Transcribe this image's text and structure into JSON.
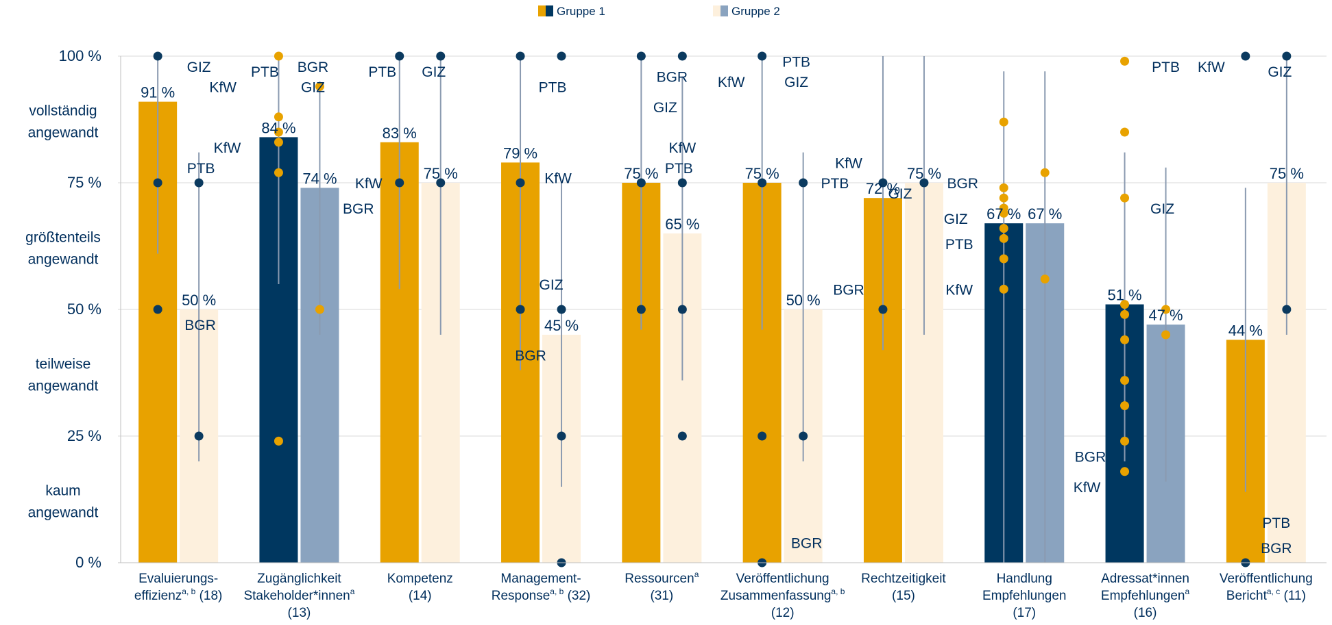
{
  "colors": {
    "group1_orange": "#e8a200",
    "group1_navy": "#003760",
    "group2_light": "#fdf0dd",
    "group2_blue": "#8aa3bf",
    "text": "#002e5c",
    "whisker": "#8a9ab0",
    "grid": "#d9d9d9",
    "dot_navy": "#0b3a5f",
    "dot_orange": "#e8a200"
  },
  "legend": {
    "group1_label": "Gruppe 1",
    "group2_label": "Gruppe 2"
  },
  "chart_data": {
    "type": "bar",
    "ylim": [
      0,
      100
    ],
    "y_ticks": [
      {
        "v": 0,
        "label": "0 %"
      },
      {
        "v": 25,
        "label": "25 %"
      },
      {
        "v": 50,
        "label": "50 %"
      },
      {
        "v": 75,
        "label": "75 %"
      },
      {
        "v": 100,
        "label": "100 %"
      }
    ],
    "y_bands": [
      {
        "v": 87.5,
        "lines": [
          "vollständig",
          "angewandt"
        ]
      },
      {
        "v": 62.5,
        "lines": [
          "größtenteils",
          "angewandt"
        ]
      },
      {
        "v": 37.5,
        "lines": [
          "teilweise",
          "angewandt"
        ]
      },
      {
        "v": 12.5,
        "lines": [
          "kaum",
          "angewandt"
        ]
      }
    ],
    "series": [
      {
        "name": "Gruppe 1"
      },
      {
        "name": "Gruppe 2"
      }
    ],
    "categories": [
      {
        "lines": [
          [
            "Evaluierungs-"
          ],
          [
            "effizienz",
            "a, b",
            " (18)"
          ]
        ],
        "g1": 91,
        "g1_label": "91 %",
        "g1_style": "orange",
        "g2": 50,
        "g2_label": "50 %",
        "g2_style": "light",
        "g1_whisker": [
          61,
          100
        ],
        "g2_whisker": [
          20,
          81
        ],
        "g1_dots": [
          {
            "v": 100,
            "c": "navy"
          },
          {
            "v": 75,
            "c": "navy"
          },
          {
            "v": 50,
            "c": "navy"
          }
        ],
        "g2_dots": [
          {
            "v": 75,
            "c": "navy"
          },
          {
            "v": 25,
            "c": "navy"
          }
        ],
        "labels": [
          {
            "text": "GIZ",
            "v": 98,
            "dx": 60
          },
          {
            "text": "KfW",
            "v": 94,
            "dx": 95
          },
          {
            "text": "PTB",
            "v": 78,
            "dx": 63
          },
          {
            "text": "BGR",
            "v": 47,
            "dx": 62
          }
        ]
      },
      {
        "lines": [
          [
            "Zugänglichkeit"
          ],
          [
            "Stakeholder*innen",
            "a",
            ""
          ],
          [
            "(13)"
          ]
        ],
        "g1": 84,
        "g1_label": "84 %",
        "g1_style": "navy",
        "g2": 74,
        "g2_label": "74 %",
        "g2_style": "blue",
        "g1_whisker": [
          55,
          100
        ],
        "g2_whisker": [
          45,
          95
        ],
        "g1_dots": [
          {
            "v": 100,
            "c": "orange"
          },
          {
            "v": 88,
            "c": "orange"
          },
          {
            "v": 85,
            "c": "orange"
          },
          {
            "v": 83,
            "c": "orange"
          },
          {
            "v": 77,
            "c": "orange"
          },
          {
            "v": 24,
            "c": "orange"
          }
        ],
        "g2_dots": [
          {
            "v": 94,
            "c": "orange"
          },
          {
            "v": 50,
            "c": "orange"
          }
        ],
        "labels": [
          {
            "text": "BGR",
            "v": 98,
            "dx": 50
          },
          {
            "text": "PTB",
            "v": 97,
            "dx": -20
          },
          {
            "text": "GIZ",
            "v": 94,
            "dx": 50
          },
          {
            "text": "KfW",
            "v": 82,
            "dx": -75
          }
        ]
      },
      {
        "lines": [
          [
            "Kompetenz"
          ],
          [
            "(14)"
          ]
        ],
        "g1": 83,
        "g1_label": "83 %",
        "g1_style": "orange",
        "g2": 75,
        "g2_label": "75 %",
        "g2_style": "light",
        "g1_whisker": [
          54,
          100
        ],
        "g2_whisker": [
          45,
          100
        ],
        "g1_dots": [
          {
            "v": 100,
            "c": "navy"
          },
          {
            "v": 75,
            "c": "navy"
          }
        ],
        "g2_dots": [
          {
            "v": 100,
            "c": "navy"
          },
          {
            "v": 75,
            "c": "navy"
          }
        ],
        "labels": [
          {
            "text": "PTB",
            "v": 97,
            "dx": -25
          },
          {
            "text": "GIZ",
            "v": 97,
            "dx": 50
          },
          {
            "text": "KfW",
            "v": 75,
            "dx": -45
          },
          {
            "text": "BGR",
            "v": 70,
            "dx": -60
          }
        ]
      },
      {
        "lines": [
          [
            "Management-"
          ],
          [
            "Response",
            "a, b",
            " (32)"
          ]
        ],
        "g1": 79,
        "g1_label": "79 %",
        "g1_style": "orange",
        "g2": 45,
        "g2_label": "45 %",
        "g2_style": "light",
        "g1_whisker": [
          38,
          100
        ],
        "g2_whisker": [
          15,
          75
        ],
        "g1_dots": [
          {
            "v": 100,
            "c": "navy"
          },
          {
            "v": 75,
            "c": "navy"
          },
          {
            "v": 50,
            "c": "navy"
          }
        ],
        "g2_dots": [
          {
            "v": 100,
            "c": "navy"
          },
          {
            "v": 50,
            "c": "navy"
          },
          {
            "v": 25,
            "c": "navy"
          },
          {
            "v": 0,
            "c": "navy"
          }
        ],
        "labels": [
          {
            "text": "PTB",
            "v": 94,
            "dx": 47
          },
          {
            "text": "KfW",
            "v": 76,
            "dx": 55
          },
          {
            "text": "GIZ",
            "v": 55,
            "dx": 45
          },
          {
            "text": "BGR",
            "v": 41,
            "dx": 15
          }
        ]
      },
      {
        "lines": [
          [
            "Ressourcen",
            "a",
            ""
          ],
          [
            "(31)"
          ]
        ],
        "g1": 75,
        "g1_label": "75 %",
        "g1_style": "orange",
        "g2": 65,
        "g2_label": "65 %",
        "g2_style": "light",
        "g1_whisker": [
          46,
          100
        ],
        "g2_whisker": [
          36,
          96
        ],
        "g1_dots": [
          {
            "v": 100,
            "c": "navy"
          },
          {
            "v": 75,
            "c": "navy"
          },
          {
            "v": 50,
            "c": "navy"
          }
        ],
        "g2_dots": [
          {
            "v": 100,
            "c": "navy"
          },
          {
            "v": 75,
            "c": "navy"
          },
          {
            "v": 50,
            "c": "navy"
          },
          {
            "v": 25,
            "c": "navy"
          }
        ],
        "labels": [
          {
            "text": "BGR",
            "v": 96,
            "dx": 45
          },
          {
            "text": "GIZ",
            "v": 90,
            "dx": 35
          },
          {
            "text": "KfW",
            "v": 82,
            "dx": 60
          },
          {
            "text": "PTB",
            "v": 78,
            "dx": 55
          }
        ]
      },
      {
        "lines": [
          [
            "Veröffentlichung"
          ],
          [
            "Zusammenfassung",
            "a, b",
            ""
          ],
          [
            "(12)"
          ]
        ],
        "g1": 75,
        "g1_label": "75 %",
        "g1_style": "orange",
        "g2": 50,
        "g2_label": "50 %",
        "g2_style": "light",
        "g1_whisker": [
          46,
          100
        ],
        "g2_whisker": [
          20,
          81
        ],
        "g1_dots": [
          {
            "v": 100,
            "c": "navy"
          },
          {
            "v": 75,
            "c": "navy"
          },
          {
            "v": 25,
            "c": "navy"
          },
          {
            "v": 0,
            "c": "navy"
          }
        ],
        "g2_dots": [
          {
            "v": 75,
            "c": "navy"
          },
          {
            "v": 25,
            "c": "navy"
          }
        ],
        "labels": [
          {
            "text": "PTB",
            "v": 99,
            "dx": 50
          },
          {
            "text": "KfW",
            "v": 95,
            "dx": -45
          },
          {
            "text": "GIZ",
            "v": 95,
            "dx": 50
          },
          {
            "text": "BGR",
            "v": 4,
            "dx": 65
          }
        ]
      },
      {
        "lines": [
          [
            "Rechtzeitigkeit"
          ],
          [
            "(15)"
          ]
        ],
        "g1": 72,
        "g1_label": "72 %",
        "g1_style": "orange",
        "g2": 75,
        "g2_label": "75 %",
        "g2_style": "light",
        "g1_whisker": [
          42,
          100
        ],
        "g2_whisker": [
          45,
          100
        ],
        "g1_dots": [
          {
            "v": 75,
            "c": "navy"
          },
          {
            "v": 50,
            "c": "navy"
          }
        ],
        "g2_dots": [
          {
            "v": 75,
            "c": "navy"
          }
        ],
        "labels": [
          {
            "text": "KfW",
            "v": 79,
            "dx": -50
          },
          {
            "text": "PTB",
            "v": 75,
            "dx": -70
          },
          {
            "text": "GIZ",
            "v": 73,
            "dx": 25
          },
          {
            "text": "BGR",
            "v": 54,
            "dx": -50
          }
        ]
      },
      {
        "lines": [
          [
            "Handlung"
          ],
          [
            "Empfehlungen"
          ],
          [
            "(17)"
          ]
        ],
        "g1": 67,
        "g1_label": "67 %",
        "g1_style": "navy",
        "g2": 67,
        "g2_label": "67 %",
        "g2_style": "blue",
        "g1_whisker": [
          0,
          97
        ],
        "g2_whisker": [
          0,
          97
        ],
        "g1_dots": [
          {
            "v": 87,
            "c": "orange"
          },
          {
            "v": 74,
            "c": "orange"
          },
          {
            "v": 72,
            "c": "orange"
          },
          {
            "v": 70,
            "c": "orange"
          },
          {
            "v": 69,
            "c": "orange"
          },
          {
            "v": 66,
            "c": "orange"
          },
          {
            "v": 64,
            "c": "orange"
          },
          {
            "v": 60,
            "c": "orange"
          },
          {
            "v": 54,
            "c": "orange"
          }
        ],
        "g2_dots": [
          {
            "v": 77,
            "c": "orange"
          },
          {
            "v": 56,
            "c": "orange"
          }
        ],
        "labels": [
          {
            "text": "BGR",
            "v": 75,
            "dx": -60
          },
          {
            "text": "GIZ",
            "v": 68,
            "dx": -70
          },
          {
            "text": "PTB",
            "v": 63,
            "dx": -65
          },
          {
            "text": "KfW",
            "v": 54,
            "dx": -65
          }
        ]
      },
      {
        "lines": [
          [
            "Adressat*innen"
          ],
          [
            "Empfehlungen",
            "a",
            ""
          ],
          [
            "(16)"
          ]
        ],
        "g1": 51,
        "g1_label": "51 %",
        "g1_style": "navy",
        "g2": 47,
        "g2_label": "47 %",
        "g2_style": "blue",
        "g1_whisker": [
          20,
          81
        ],
        "g2_whisker": [
          16,
          78
        ],
        "g1_dots": [
          {
            "v": 99,
            "c": "orange"
          },
          {
            "v": 85,
            "c": "orange"
          },
          {
            "v": 72,
            "c": "orange"
          },
          {
            "v": 51,
            "c": "orange"
          },
          {
            "v": 49,
            "c": "orange"
          },
          {
            "v": 44,
            "c": "orange"
          },
          {
            "v": 36,
            "c": "orange"
          },
          {
            "v": 31,
            "c": "orange"
          },
          {
            "v": 24,
            "c": "orange"
          },
          {
            "v": 18,
            "c": "orange"
          }
        ],
        "g2_dots": [
          {
            "v": 50,
            "c": "orange"
          },
          {
            "v": 45,
            "c": "orange"
          }
        ],
        "labels": [
          {
            "text": "PTB",
            "v": 98,
            "dx": 60
          },
          {
            "text": "GIZ",
            "v": 70,
            "dx": 55
          },
          {
            "text": "BGR",
            "v": 21,
            "dx": -50
          },
          {
            "text": "KfW",
            "v": 15,
            "dx": -55
          }
        ]
      },
      {
        "lines": [
          [
            "Veröffentlichung"
          ],
          [
            "Bericht",
            "a, c",
            " (11)"
          ]
        ],
        "g1": 44,
        "g1_label": "44 %",
        "g1_style": "orange",
        "g2": 75,
        "g2_label": "75 %",
        "g2_style": "light",
        "g1_whisker": [
          14,
          74
        ],
        "g2_whisker": [
          45,
          100
        ],
        "g1_dots": [
          {
            "v": 100,
            "c": "navy"
          },
          {
            "v": 0,
            "c": "navy"
          }
        ],
        "g2_dots": [
          {
            "v": 100,
            "c": "navy"
          },
          {
            "v": 50,
            "c": "navy"
          }
        ],
        "labels": [
          {
            "text": "KfW",
            "v": 98,
            "dx": -50
          },
          {
            "text": "GIZ",
            "v": 97,
            "dx": 50
          },
          {
            "text": "PTB",
            "v": 8,
            "dx": 45
          },
          {
            "text": "BGR",
            "v": 3,
            "dx": 45
          }
        ]
      }
    ]
  }
}
